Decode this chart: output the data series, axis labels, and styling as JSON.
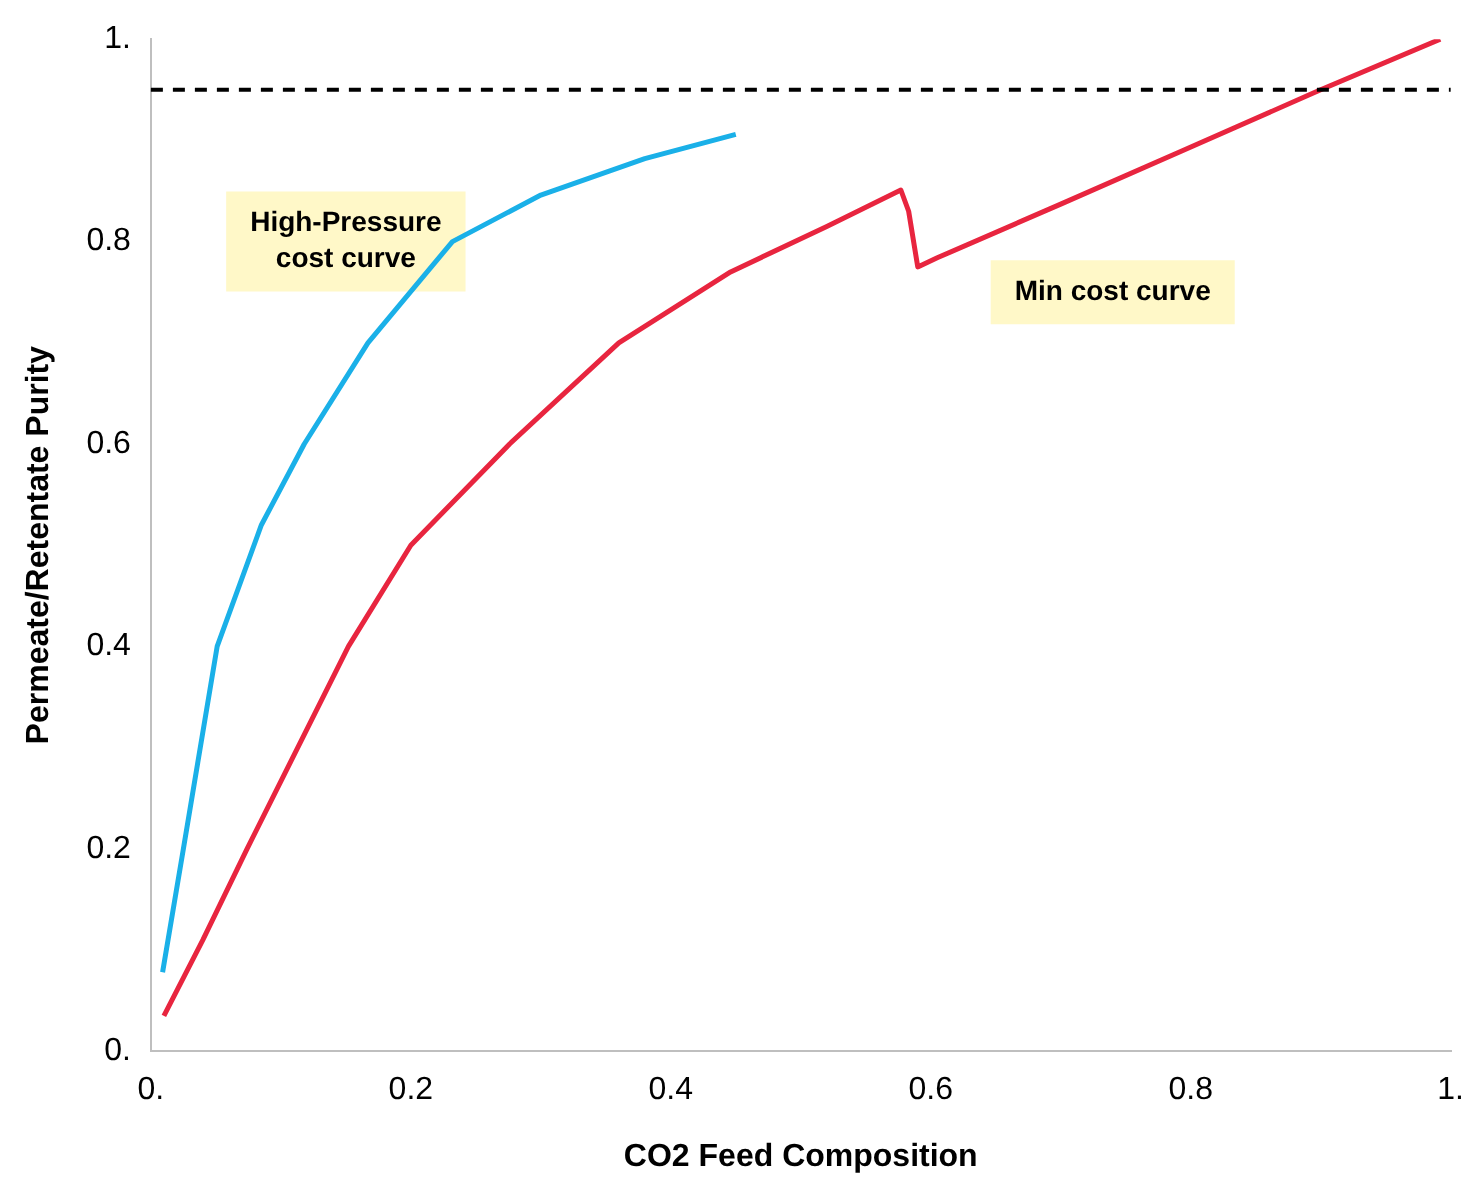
{
  "chart_data": {
    "type": "line",
    "xlabel": "CO2 Feed Composition",
    "ylabel": "Permeate/Retentate Purity",
    "xlim": [
      0,
      1
    ],
    "ylim": [
      0,
      1
    ],
    "xticks": [
      {
        "value": 0,
        "label": "0."
      },
      0.2,
      0.4,
      0.6,
      0.8,
      {
        "value": 1,
        "label": "1."
      }
    ],
    "yticks": [
      {
        "value": 0,
        "label": "0."
      },
      0.2,
      0.4,
      0.6,
      0.8,
      {
        "value": 1,
        "label": "1."
      }
    ],
    "grid": false,
    "legend": false,
    "marker": "none",
    "line_style": "solid",
    "series": [
      {
        "color": "#1ab0e8",
        "x": [
          0.009,
          0.025,
          0.051,
          0.085,
          0.118,
          0.167,
          0.232,
          0.3,
          0.38,
          0.45
        ],
        "values": [
          0.078,
          0.2,
          0.4,
          0.52,
          0.6,
          0.7,
          0.8,
          0.846,
          0.882,
          0.906
        ]
      },
      {
        "color": "#e8253f",
        "x": [
          0.01,
          0.04,
          0.074,
          0.152,
          0.2,
          0.276,
          0.36,
          0.446,
          0.52,
          0.577,
          0.583,
          0.59,
          0.605,
          0.7,
          0.794,
          0.9,
          0.992
        ],
        "values": [
          0.035,
          0.11,
          0.2,
          0.4,
          0.5,
          0.6,
          0.7,
          0.77,
          0.815,
          0.851,
          0.83,
          0.775,
          0.784,
          0.837,
          0.89,
          0.95,
          1.0
        ]
      }
    ],
    "ref_lines": [
      {
        "axis": "y",
        "value": 0.95,
        "color": "#000000",
        "line_style": "dashed"
      }
    ],
    "annotations": [
      "High-Pressure\ncost curve",
      "Min cost curve"
    ]
  }
}
